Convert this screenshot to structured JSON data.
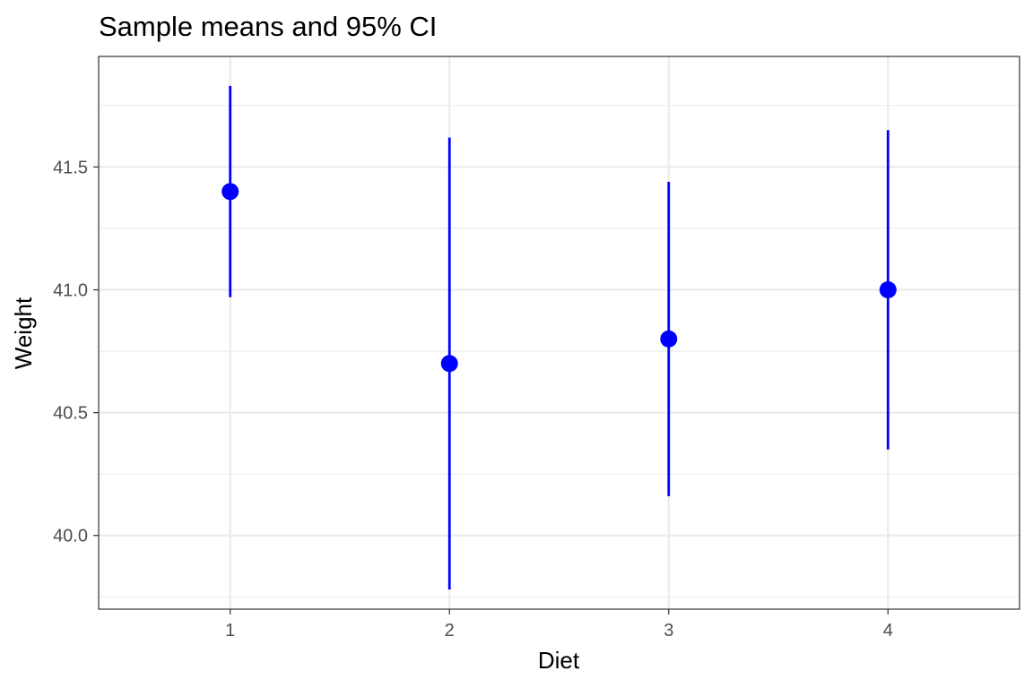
{
  "chart_data": {
    "type": "scatter",
    "title": "Sample means and 95% CI",
    "xlabel": "Diet",
    "ylabel": "Weight",
    "categories": [
      "1",
      "2",
      "3",
      "4"
    ],
    "series": [
      {
        "values": [
          41.4,
          40.7,
          40.8,
          41.0
        ],
        "ci_lower": [
          40.97,
          39.78,
          40.16,
          40.35
        ],
        "ci_upper": [
          41.83,
          41.62,
          41.44,
          41.65
        ]
      }
    ],
    "ylim": [
      39.7,
      41.95
    ],
    "yticks": [
      40.0,
      40.5,
      41.0,
      41.5
    ],
    "ytick_labels": [
      "40.0",
      "40.5",
      "41.0",
      "41.5"
    ],
    "grid": true,
    "colors": {
      "point": "#0000ff",
      "errorbar": "#0000ff",
      "grid": "#ebebeb",
      "panel_border": "#333333"
    }
  }
}
